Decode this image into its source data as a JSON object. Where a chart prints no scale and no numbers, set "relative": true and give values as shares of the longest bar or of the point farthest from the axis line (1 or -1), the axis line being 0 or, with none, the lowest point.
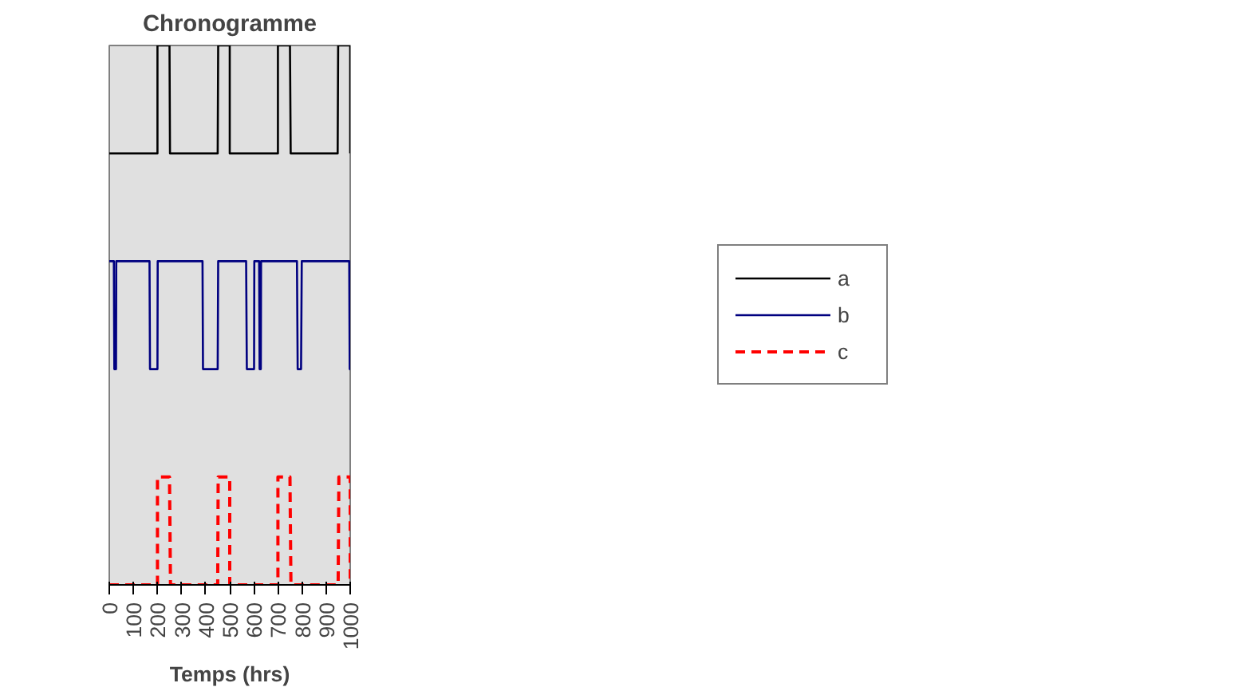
{
  "chart_data": {
    "type": "line",
    "title": "Chronogramme",
    "xlabel": "Temps (hrs)",
    "relative": true,
    "xlim": [
      0,
      1000
    ],
    "xticks": [
      0,
      100,
      200,
      300,
      400,
      500,
      600,
      700,
      800,
      900,
      1000
    ],
    "grid": false,
    "legend": "right",
    "series": [
      {
        "name": "a",
        "color": "#000000",
        "line_style": "solid",
        "x": [
          0,
          200,
          200,
          250,
          252,
          450,
          452,
          500,
          500,
          700,
          700,
          750,
          753,
          948,
          950,
          1000,
          1000
        ],
        "values": [
          0.8,
          0.8,
          1,
          1,
          0.8,
          0.8,
          1,
          1,
          0.8,
          0.8,
          1,
          1,
          0.8,
          0.8,
          1,
          1,
          0.8
        ]
      },
      {
        "name": "b",
        "color": "#000080",
        "line_style": "solid",
        "x": [
          0,
          19,
          21,
          28,
          29,
          167,
          169,
          200,
          201,
          387,
          389,
          450,
          452,
          568,
          571,
          601,
          602,
          622,
          624,
          629,
          630,
          779,
          782,
          796,
          799,
          996,
          998,
          1000
        ],
        "values": [
          0.6,
          0.6,
          0.4,
          0.4,
          0.6,
          0.6,
          0.4,
          0.4,
          0.6,
          0.6,
          0.4,
          0.4,
          0.6,
          0.6,
          0.4,
          0.4,
          0.6,
          0.6,
          0.4,
          0.4,
          0.6,
          0.6,
          0.4,
          0.4,
          0.6,
          0.6,
          0.4,
          0.4
        ]
      },
      {
        "name": "c",
        "color": "#ff0000",
        "line_style": "dashed",
        "x": [
          0,
          200,
          200,
          250,
          254,
          450,
          452,
          500,
          500,
          700,
          700,
          750,
          754,
          950,
          953,
          1000,
          1000
        ],
        "values": [
          0,
          0,
          0.2,
          0.2,
          0,
          0,
          0.2,
          0.2,
          0,
          0,
          0.2,
          0.2,
          0,
          0,
          0.2,
          0.2,
          0
        ]
      }
    ]
  }
}
